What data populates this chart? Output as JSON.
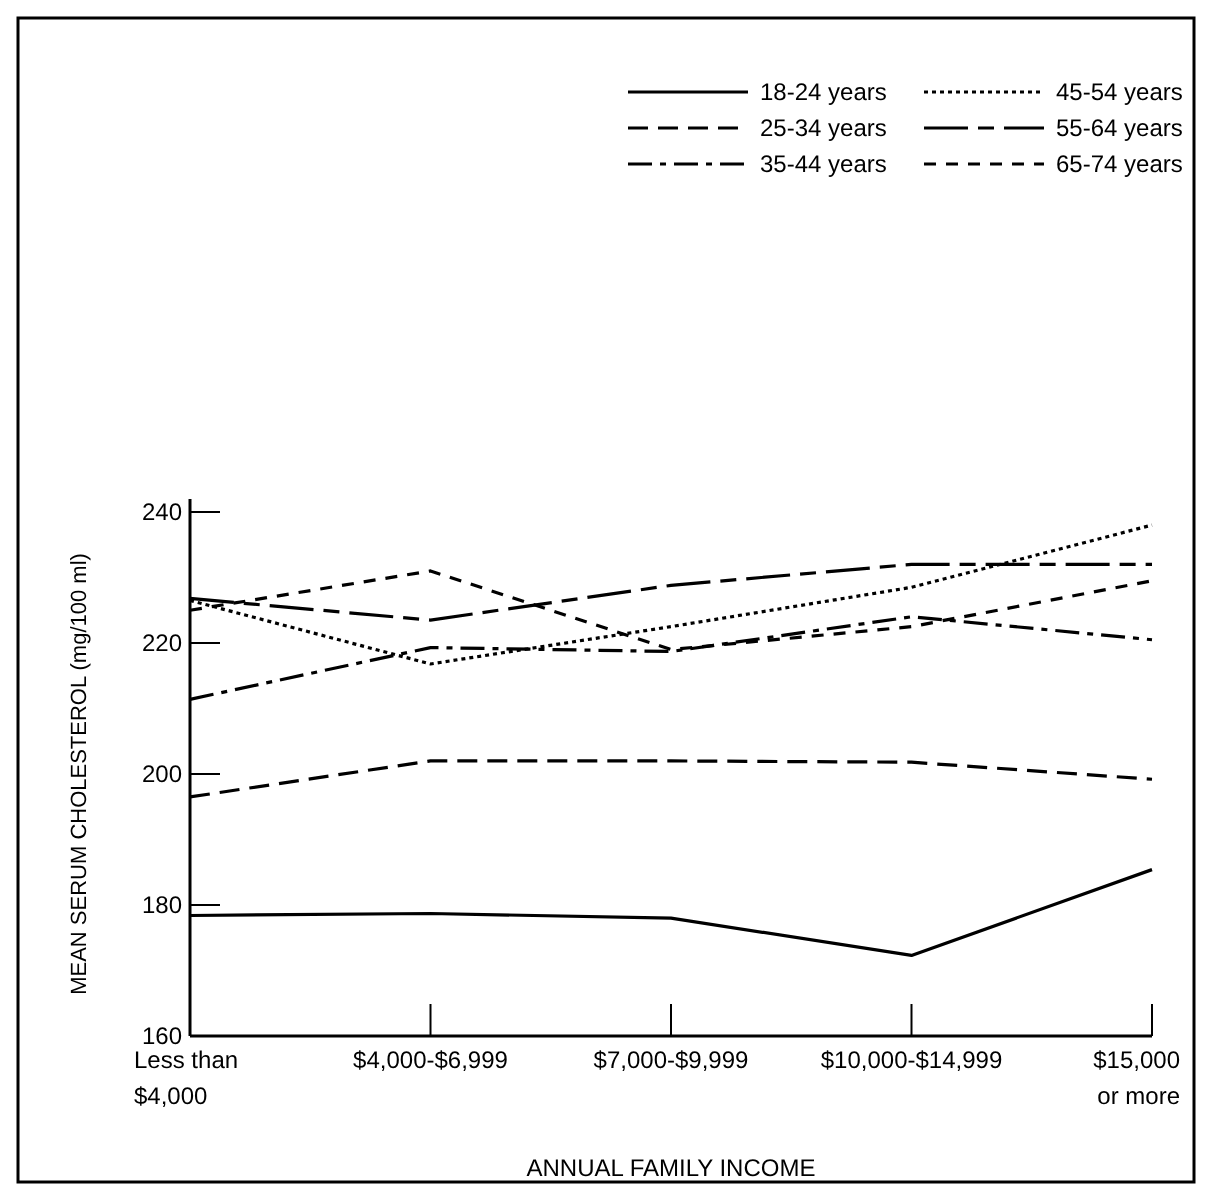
{
  "chart_data": {
    "type": "line",
    "xlabel": "ANNUAL FAMILY INCOME",
    "ylabel": "MEAN SERUM CHOLESTEROL (mg/100 ml)",
    "categories": [
      "Less than\n$4,000",
      "$4,000-$6,999",
      "$7,000-$9,999",
      "$10,000-$14,999",
      "$15,000\nor more"
    ],
    "ylim": [
      160,
      242
    ],
    "yticks": [
      160,
      180,
      200,
      220,
      240
    ],
    "legend": "top right",
    "grid": false,
    "series": [
      {
        "name": "18-24 years",
        "color": "#000000",
        "line_style": "solid",
        "values": [
          178.4,
          178.7,
          178,
          172.3,
          185.4
        ]
      },
      {
        "name": "25-34 years",
        "color": "#000000",
        "line_style": "dashed",
        "values": [
          196.5,
          202,
          202,
          201.8,
          199.2
        ]
      },
      {
        "name": "35-44 years",
        "color": "#000000",
        "line_style": "dashed",
        "values": [
          211.4,
          219.3,
          218.7,
          224,
          220.5
        ]
      },
      {
        "name": "45-54 years",
        "color": "#000000",
        "line_style": "dotted",
        "values": [
          226.5,
          216.8,
          222.5,
          228.5,
          238
        ]
      },
      {
        "name": "55-64 years",
        "color": "#000000",
        "line_style": "dashed",
        "values": [
          226.8,
          223.5,
          228.8,
          232,
          232
        ]
      },
      {
        "name": "65-74 years",
        "color": "#000000",
        "line_style": "dashed",
        "values": [
          225,
          231,
          219,
          222.5,
          229.5
        ]
      }
    ]
  }
}
